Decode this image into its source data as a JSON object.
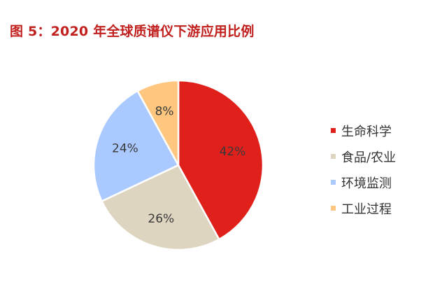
{
  "title": "图 5：2020 年全球质谱仪下游应用比例",
  "chart_data": {
    "type": "pie",
    "slices": [
      {
        "label": "生命科学",
        "value": 42,
        "value_label": "42%",
        "color": "#e0201b"
      },
      {
        "label": "食品/农业",
        "value": 26,
        "value_label": "26%",
        "color": "#ddd5bf"
      },
      {
        "label": "环境监测",
        "value": 24,
        "value_label": "24%",
        "color": "#a9c9ff"
      },
      {
        "label": "工业过程",
        "value": 8,
        "value_label": "8%",
        "color": "#ffc67f"
      }
    ],
    "legend_position": "right"
  }
}
